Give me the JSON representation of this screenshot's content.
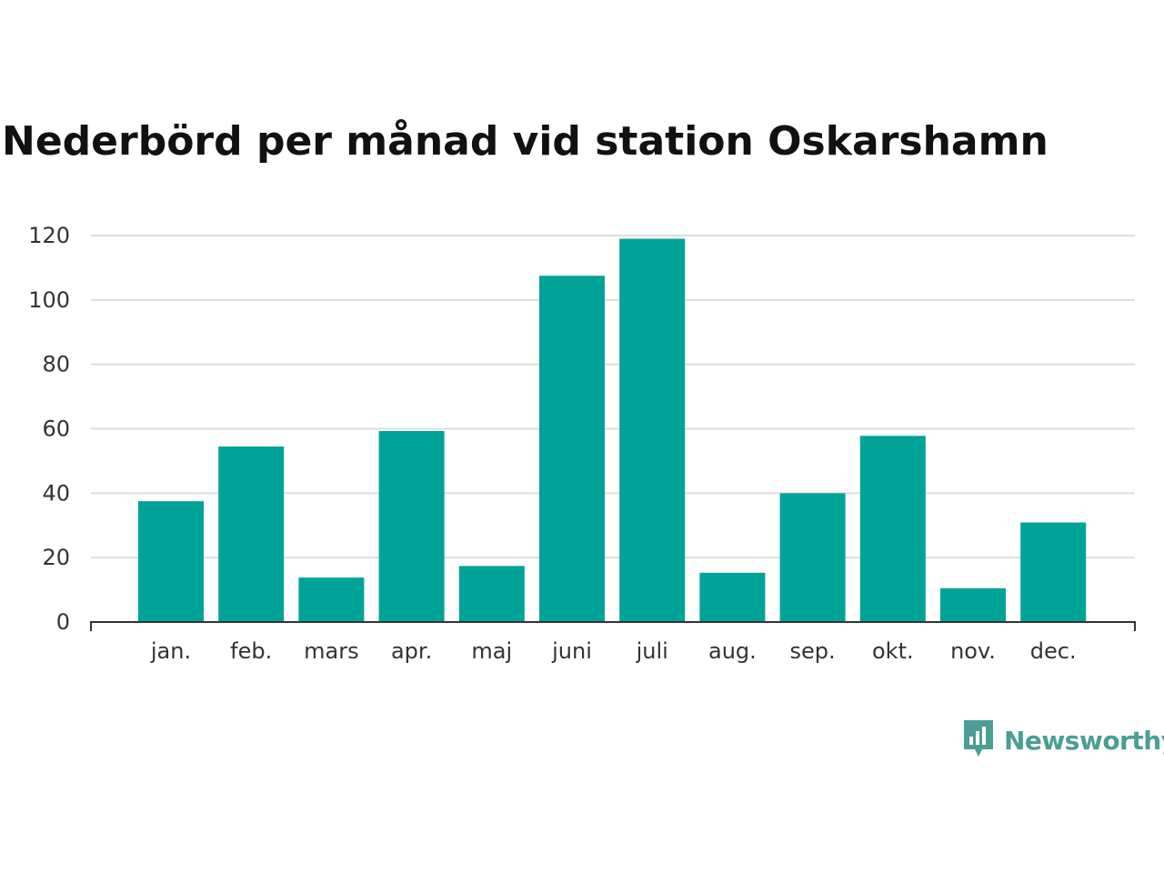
{
  "title": "Nederbörd per månad vid station Oskarshamn",
  "brand": {
    "name": "Newsworthy",
    "icon": "newsworthy-logo-icon",
    "color": "#4a9e95"
  },
  "colors": {
    "bar": "#00a398",
    "grid": "#dddddd",
    "axis": "#333333"
  },
  "chart_data": {
    "type": "bar",
    "title": "Nederbörd per månad vid station Oskarshamn",
    "xlabel": "",
    "ylabel": "",
    "categories": [
      "jan.",
      "feb.",
      "mars",
      "apr.",
      "maj",
      "juni",
      "juli",
      "aug.",
      "sep.",
      "okt.",
      "nov.",
      "dec."
    ],
    "values": [
      37.5,
      54.5,
      13.8,
      59.3,
      17.4,
      107.5,
      119,
      15.3,
      40,
      57.8,
      10.5,
      30.9
    ],
    "ylim": [
      0,
      120
    ],
    "yticks": [
      0,
      20,
      40,
      60,
      80,
      100,
      120
    ],
    "grid": true,
    "legend": "none"
  }
}
